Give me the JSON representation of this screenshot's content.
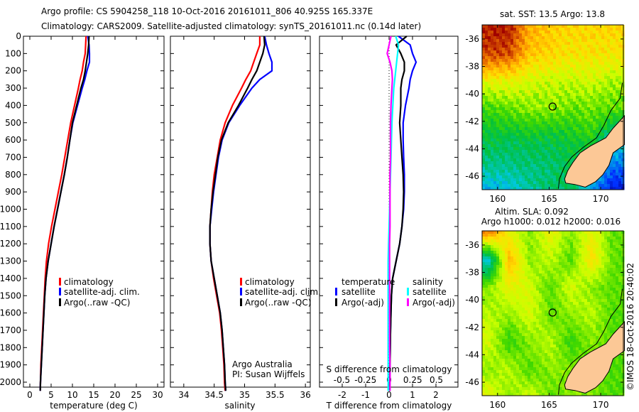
{
  "header": {
    "line1": "Argo profile: CS 5904258_118 10-Oct-2016 20161011_806 40.925S 165.337E",
    "line2": "Climatology: CARS2009. Satellite-adjusted climatology: synTS_20161011.nc (0.14d later)"
  },
  "colors": {
    "climatology": "#ff0000",
    "satellite": "#0000ff",
    "argo": "#000000",
    "sal_satellite": "#00ffff",
    "sal_argo": "#ff00ff",
    "land": "#fcc896"
  },
  "chart_data": [
    {
      "type": "line",
      "title": "",
      "xlabel": "temperature (deg C)",
      "ylabel": "",
      "xlim": [
        -1.5,
        31.5
      ],
      "ylim": [
        2080,
        0
      ],
      "xticks": [
        "0",
        "5",
        "10",
        "15",
        "20",
        "25",
        "30"
      ],
      "yticks": [
        "0",
        "100",
        "200",
        "300",
        "400",
        "500",
        "600",
        "700",
        "800",
        "900",
        "1000",
        "1100",
        "1200",
        "1300",
        "1400",
        "1500",
        "1600",
        "1700",
        "1800",
        "1900",
        "2000"
      ],
      "depth": [
        0,
        50,
        100,
        150,
        200,
        250,
        300,
        400,
        500,
        600,
        700,
        800,
        900,
        1000,
        1100,
        1200,
        1300,
        1400,
        1500,
        1600,
        1700,
        1800,
        1900,
        2000,
        2050
      ],
      "legend": [
        "climatology",
        "satellite-adj. clim.",
        "Argo(..raw -QC)"
      ],
      "series": [
        {
          "name": "climatology",
          "values": [
            13.2,
            13.1,
            13.0,
            12.6,
            12.3,
            11.8,
            11.4,
            10.5,
            9.6,
            8.9,
            8.2,
            7.5,
            6.7,
            5.9,
            5.1,
            4.4,
            3.9,
            3.6,
            3.4,
            3.2,
            3.0,
            2.8,
            2.6,
            2.5,
            2.45
          ]
        },
        {
          "name": "satellite-adj. clim.",
          "values": [
            13.6,
            13.9,
            14.0,
            14.0,
            13.4,
            12.9,
            12.3,
            11.2,
            10.1,
            9.4,
            8.8,
            8.1,
            7.3,
            6.5,
            5.7,
            5.0,
            4.3,
            3.8,
            3.5,
            3.3,
            3.1,
            2.9,
            2.7,
            2.5,
            2.45
          ]
        },
        {
          "name": "Argo(..raw -QC)",
          "values": [
            13.9,
            13.8,
            13.6,
            13.3,
            13.0,
            12.6,
            12.0,
            11.0,
            10.0,
            9.4,
            8.8,
            8.1,
            7.3,
            6.5,
            5.7,
            5.0,
            4.3,
            3.8,
            3.5,
            3.3,
            3.1,
            2.9,
            2.7,
            2.5,
            2.45
          ]
        }
      ]
    },
    {
      "type": "line",
      "xlabel": "salinity",
      "xlim": [
        33.78,
        36.08
      ],
      "ylim": [
        2080,
        0
      ],
      "xticks": [
        "34",
        "34.5",
        "35",
        "35.5",
        "36"
      ],
      "depth": [
        0,
        50,
        100,
        150,
        200,
        250,
        300,
        400,
        500,
        600,
        700,
        800,
        900,
        1000,
        1100,
        1200,
        1300,
        1400,
        1500,
        1600,
        1700,
        1800,
        1900,
        2000,
        2050
      ],
      "legend": [
        "climatology",
        "satellite-adj. clim.",
        "Argo(..raw -QC)"
      ],
      "annotation": [
        "Argo Australia",
        "PI: Susan Wijffels"
      ],
      "series": [
        {
          "name": "climatology",
          "values": [
            35.25,
            35.25,
            35.2,
            35.15,
            35.1,
            35.02,
            34.95,
            34.8,
            34.68,
            34.6,
            34.55,
            34.5,
            34.47,
            34.45,
            34.43,
            34.43,
            34.45,
            34.49,
            34.54,
            34.59,
            34.62,
            34.64,
            34.66,
            34.67,
            34.68
          ]
        },
        {
          "name": "satellite-adj. clim.",
          "values": [
            35.33,
            35.36,
            35.4,
            35.45,
            35.45,
            35.25,
            35.12,
            34.92,
            34.74,
            34.63,
            34.57,
            34.53,
            34.49,
            34.46,
            34.43,
            34.43,
            34.45,
            34.5,
            34.55,
            34.6,
            34.63,
            34.65,
            34.67,
            34.68,
            34.69
          ]
        },
        {
          "name": "Argo(..raw -QC)",
          "values": [
            35.32,
            35.33,
            35.3,
            35.25,
            35.2,
            35.12,
            35.05,
            34.9,
            34.73,
            34.62,
            34.56,
            34.52,
            34.48,
            34.45,
            34.43,
            34.43,
            34.45,
            34.5,
            34.55,
            34.6,
            34.63,
            34.65,
            34.67,
            34.68,
            34.69
          ]
        }
      ]
    },
    {
      "type": "line",
      "xlabel": "T difference from climatology",
      "x2label": "S difference from climatology",
      "xlim": [
        -2.85,
        3.0
      ],
      "x2lim": [
        -0.7125,
        0.75
      ],
      "ylim": [
        2080,
        0
      ],
      "xticks": [
        "-2",
        "-1",
        "0",
        "1",
        "2"
      ],
      "x2ticks": [
        "-0.5",
        "-0.25",
        "0",
        "0.25",
        "0.5"
      ],
      "depth": [
        0,
        50,
        100,
        150,
        200,
        250,
        300,
        400,
        500,
        600,
        700,
        800,
        900,
        1000,
        1100,
        1200,
        1300,
        1400,
        1500,
        1600,
        1700,
        1800,
        1900,
        2000,
        2050
      ],
      "legend": {
        "temperature_title": "temperature",
        "salinity_title": "salinity",
        "items": [
          "satellite",
          "Argo(-adj)",
          "satellite",
          "Argo(-adj)"
        ]
      },
      "series": [
        {
          "name": "temperature satellite",
          "axis": "T",
          "values": [
            0.4,
            0.9,
            1.0,
            1.15,
            1.0,
            0.9,
            0.85,
            0.7,
            0.6,
            0.6,
            0.62,
            0.65,
            0.65,
            0.62,
            0.55,
            0.45,
            0.3,
            0.15,
            0.1,
            0.08,
            0.06,
            0.05,
            0.04,
            0.03,
            0.03
          ]
        },
        {
          "name": "temperature Argo(-adj)",
          "axis": "T",
          "values": [
            0.75,
            0.3,
            0.5,
            0.65,
            0.65,
            0.55,
            0.5,
            0.5,
            0.45,
            0.5,
            0.55,
            0.6,
            0.62,
            0.6,
            0.55,
            0.45,
            0.3,
            0.15,
            0.1,
            0.08,
            0.06,
            0.05,
            0.04,
            0.03,
            0.03
          ]
        },
        {
          "name": "salinity satellite",
          "axis": "S",
          "values": [
            0.07,
            0.1,
            0.09,
            0.08,
            0.07,
            0.06,
            0.05,
            0.04,
            0.03,
            0.025,
            0.02,
            0.015,
            0.01,
            0.005,
            0,
            -0.005,
            -0.01,
            -0.01,
            -0.01,
            -0.01,
            -0.01,
            -0.01,
            -0.01,
            -0.01,
            -0.01
          ]
        },
        {
          "name": "salinity Argo(-adj)",
          "axis": "S",
          "values": [
            0.02,
            0.0,
            -0.02,
            0.01,
            0.03,
            0.035,
            0.03,
            0.02,
            0.015,
            0.015,
            0.015,
            0.01,
            0.01,
            0.01,
            0.01,
            0.005,
            0.005,
            0.005,
            0.005,
            0.005,
            0.005,
            0.005,
            0.01,
            0.01,
            0.01
          ]
        }
      ]
    },
    {
      "type": "heatmap",
      "title": "sat. SST: 13.5 Argo: 13.8",
      "xlim": [
        158.5,
        172.2
      ],
      "ylim": [
        -46.98,
        -34.97
      ],
      "xticks": [
        "160",
        "165",
        "170"
      ],
      "yticks": [
        "-36",
        "-38",
        "-40",
        "-42",
        "-44",
        "-46"
      ],
      "value_range": [
        9.5,
        17.0
      ],
      "grid_lon": [
        159,
        161,
        163,
        165,
        167,
        169,
        171
      ],
      "grid_lat": [
        -35,
        -37,
        -39,
        -41,
        -43,
        -45,
        -47
      ],
      "grid": [
        [
          16.8,
          16.8,
          15.5,
          15.2,
          15.0,
          15.0,
          15.0
        ],
        [
          16.5,
          16.4,
          15.2,
          15.0,
          14.8,
          14.8,
          14.8
        ],
        [
          14.5,
          14.5,
          14.3,
          14.2,
          14.2,
          14.3,
          14.0
        ],
        [
          13.3,
          13.6,
          13.8,
          13.8,
          13.6,
          13.6,
          13.5
        ],
        [
          12.7,
          12.6,
          12.8,
          12.7,
          12.9,
          13.2,
          12.0
        ],
        [
          12.2,
          12.2,
          12.3,
          12.4,
          12.6,
          12.0,
          11.0
        ],
        [
          11.3,
          11.5,
          12.0,
          12.3,
          12.6,
          11.2,
          10.0
        ]
      ],
      "argo_position": [
        165.337,
        -40.925
      ]
    },
    {
      "type": "heatmap",
      "title": "Altim. SLA: 0.092",
      "subtitle": "Argo h1000: 0.012 h2000: 0.016",
      "xlim": [
        158.5,
        172.2
      ],
      "ylim": [
        -46.98,
        -34.97
      ],
      "xticks": [
        "160",
        "165",
        "170"
      ],
      "yticks": [
        "-36",
        "-38",
        "-40",
        "-42",
        "-44",
        "-46"
      ],
      "value_range": [
        -0.35,
        0.35
      ],
      "grid_lon": [
        159,
        161,
        163,
        165,
        167,
        169,
        171
      ],
      "grid_lat": [
        -35,
        -37,
        -39,
        -41,
        -43,
        -45,
        -47
      ],
      "grid": [
        [
          0.25,
          0.12,
          0.05,
          0.12,
          0.05,
          0.12,
          0.03
        ],
        [
          -0.15,
          0.2,
          0.05,
          0.08,
          0.02,
          0.15,
          0.03
        ],
        [
          0.05,
          0.12,
          0.1,
          0.02,
          0.1,
          0.05,
          0.03
        ],
        [
          0.08,
          0.05,
          0.1,
          0.03,
          0.05,
          0.08,
          0.02
        ],
        [
          0.1,
          0.0,
          0.05,
          0.08,
          0.0,
          0.05,
          0.02
        ],
        [
          0.05,
          0.08,
          0.02,
          0.05,
          0.05,
          0.03,
          0.02
        ],
        [
          0.12,
          0.05,
          0.1,
          0.03,
          0.05,
          0.05,
          0.02
        ]
      ],
      "argo_position": [
        165.337,
        -40.925
      ]
    }
  ],
  "footer": {
    "credit": "©IMOS 18-Oct-2016 20:40:02"
  }
}
